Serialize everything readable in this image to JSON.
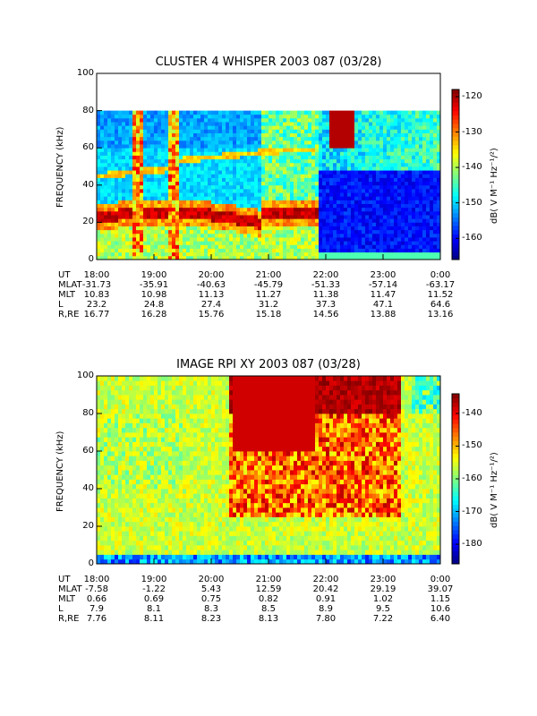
{
  "chart_data": [
    {
      "type": "heatmap",
      "title": "CLUSTER 4 WHISPER 2003 087 (03/28)",
      "ylabel": "FREQUENCY (kHz)",
      "ylim": [
        0,
        100
      ],
      "y_ticks": [
        "0",
        "20",
        "40",
        "60",
        "80",
        "100"
      ],
      "data_ylim": [
        0,
        80
      ],
      "x_ticks": [
        "18:00",
        "19:00",
        "20:00",
        "21:00",
        "22:00",
        "23:00",
        "0:00"
      ],
      "colorbar": {
        "label": "dB( V M⁻¹ Hz⁻¹/²)",
        "range": [
          -166,
          -118
        ],
        "ticks": [
          "-120",
          "-130",
          "-140",
          "-150",
          "-160"
        ],
        "tick_values": [
          -120,
          -130,
          -140,
          -150,
          -160
        ]
      },
      "ephemeris": [
        {
          "label": "UT",
          "values": [
            "18:00",
            "19:00",
            "20:00",
            "21:00",
            "22:00",
            "23:00",
            "0:00"
          ]
        },
        {
          "label": "MLAT",
          "values": [
            "-31.73",
            "-35.91",
            "-40.63",
            "-45.79",
            "-51.33",
            "-57.14",
            "-63.17"
          ]
        },
        {
          "label": "MLT",
          "values": [
            "10.83",
            "10.98",
            "11.13",
            "11.27",
            "11.38",
            "11.47",
            "11.52"
          ]
        },
        {
          "label": "L",
          "values": [
            "23.2",
            "24.8",
            "27.4",
            "31.2",
            "37.3",
            "47.1",
            "64.6"
          ]
        },
        {
          "label": "R,RE",
          "values": [
            "16.77",
            "16.28",
            "15.76",
            "15.18",
            "14.56",
            "13.88",
            "13.16"
          ]
        }
      ]
    },
    {
      "type": "heatmap",
      "title": "IMAGE RPI XY 2003 087 (03/28)",
      "ylabel": "FREQUENCY (kHz)",
      "ylim": [
        0,
        100
      ],
      "y_ticks": [
        "0",
        "20",
        "40",
        "60",
        "80",
        "100"
      ],
      "data_ylim": [
        0,
        100
      ],
      "x_ticks": [
        "18:00",
        "19:00",
        "20:00",
        "21:00",
        "22:00",
        "23:00",
        "0:00"
      ],
      "colorbar": {
        "label": "dB( V M⁻¹ Hz⁻¹/²)",
        "range": [
          -186,
          -134
        ],
        "ticks": [
          "-140",
          "-150",
          "-160",
          "-170",
          "-180"
        ],
        "tick_values": [
          -140,
          -150,
          -160,
          -170,
          -180
        ]
      },
      "ephemeris": [
        {
          "label": "UT",
          "values": [
            "18:00",
            "19:00",
            "20:00",
            "21:00",
            "22:00",
            "23:00",
            "0:00"
          ]
        },
        {
          "label": "MLAT",
          "values": [
            "-7.58",
            "-1.22",
            "5.43",
            "12.59",
            "20.42",
            "29.19",
            "39.07"
          ]
        },
        {
          "label": "MLT",
          "values": [
            "0.66",
            "0.69",
            "0.75",
            "0.82",
            "0.91",
            "1.02",
            "1.15"
          ]
        },
        {
          "label": "L",
          "values": [
            "7.9",
            "8.1",
            "8.3",
            "8.5",
            "8.9",
            "9.5",
            "10.6"
          ]
        },
        {
          "label": "R,RE",
          "values": [
            "7.76",
            "8.11",
            "8.23",
            "8.13",
            "7.80",
            "7.22",
            "6.40"
          ]
        }
      ]
    }
  ]
}
